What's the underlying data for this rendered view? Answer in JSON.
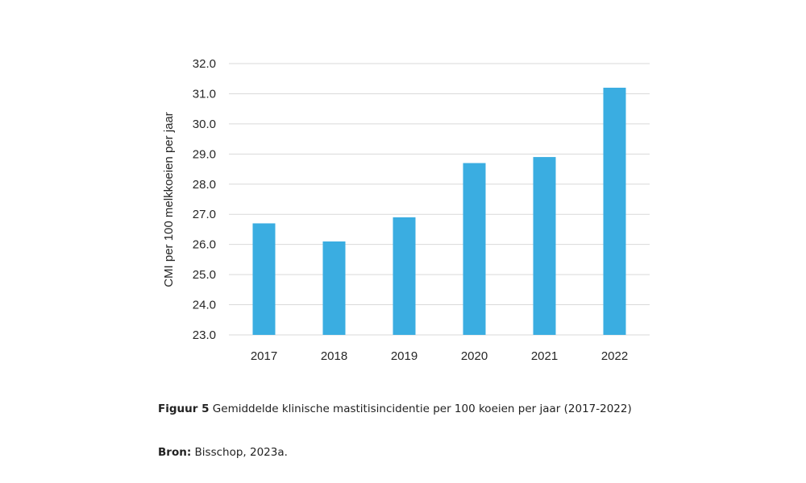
{
  "chart_data": {
    "type": "bar",
    "categories": [
      "2017",
      "2018",
      "2019",
      "2020",
      "2021",
      "2022"
    ],
    "values": [
      26.7,
      26.1,
      26.9,
      28.7,
      28.9,
      31.2
    ],
    "ylabel": "CMI per 100 melkkoeien per jaar",
    "xlabel": "",
    "ylim": [
      23.0,
      32.0
    ],
    "yticks": [
      "23.0",
      "24.0",
      "25.0",
      "26.0",
      "27.0",
      "28.0",
      "29.0",
      "30.0",
      "31.0",
      "32.0"
    ],
    "grid": true,
    "bar_color": "#3AADE1",
    "grid_color": "#D9D9D9"
  },
  "caption": {
    "label": "Figuur 5",
    "text": "Gemiddelde klinische mastitisincidentie per 100 koeien per jaar (2017-2022)"
  },
  "source": {
    "label": "Bron:",
    "text": "Bisschop, 2023a."
  }
}
